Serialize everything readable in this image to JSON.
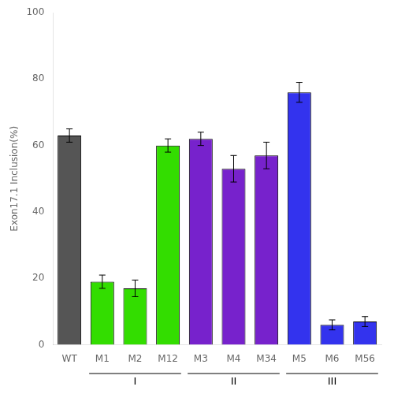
{
  "chart_data": {
    "type": "bar",
    "categories": [
      "WT",
      "M1",
      "M2",
      "M12",
      "M3",
      "M4",
      "M34",
      "M5",
      "M6",
      "M56"
    ],
    "values": [
      63,
      19,
      17,
      60,
      62,
      53,
      57,
      76,
      6,
      7
    ],
    "errors": [
      2,
      2,
      2.5,
      2,
      2,
      4,
      4,
      3,
      1.5,
      1.5
    ],
    "colors": [
      "#555555",
      "#33dd00",
      "#33dd00",
      "#33dd00",
      "#7722cc",
      "#7722cc",
      "#7722cc",
      "#3333ee",
      "#3333ee",
      "#3333ee"
    ],
    "ylabel": "Exon17.1 Inclusion(%)",
    "ylim": [
      0,
      100
    ],
    "yticks": [
      0,
      20,
      40,
      60,
      80,
      100
    ],
    "grid": false,
    "annotations": [
      {
        "text": "I",
        "from": "M1",
        "to": "M12"
      },
      {
        "text": "II",
        "from": "M3",
        "to": "M34"
      },
      {
        "text": "III",
        "from": "M5",
        "to": "M56"
      }
    ]
  }
}
